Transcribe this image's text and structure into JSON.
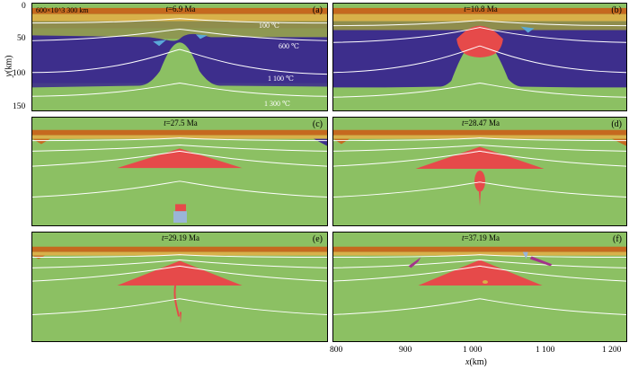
{
  "figure": {
    "scale_text": "600×10^3 300 km",
    "y_axis": {
      "label_var": "y",
      "label_unit": "(km)",
      "ticks": [
        "0",
        "50",
        "100",
        "150"
      ]
    },
    "x_axis": {
      "label_var": "x",
      "label_unit": "(km)",
      "ticks": [
        "800",
        "900",
        "1 000",
        "1 100",
        "1 200"
      ]
    },
    "isotherms": [
      "100 ℃",
      "600 ℃",
      "1 100 ℃",
      "1 300 ℃"
    ],
    "panels": [
      {
        "id": "a",
        "label": "(a)",
        "time_var": "t",
        "time_val": "=6.9 Ma"
      },
      {
        "id": "b",
        "label": "(b)",
        "time_var": "t",
        "time_val": "=10.8 Ma"
      },
      {
        "id": "c",
        "label": "(c)",
        "time_var": "t",
        "time_val": "=27.5 Ma"
      },
      {
        "id": "d",
        "label": "(d)",
        "time_var": "t",
        "time_val": "=28.47 Ma"
      },
      {
        "id": "e",
        "label": "(e)",
        "time_var": "t",
        "time_val": "=29.19 Ma"
      },
      {
        "id": "f",
        "label": "(f)",
        "time_var": "t",
        "time_val": "=37.19 Ma"
      }
    ],
    "colors": {
      "mantle": "#8cc063",
      "lithosphere": "#3d2e8c",
      "melt": "#e64a4a",
      "crust_upper": "#c5691f",
      "crust_mid": "#d8b14a",
      "crust_lower": "#8f8d4d",
      "isotherm": "#ffffff",
      "blob_blue": "#9ab5d8"
    }
  }
}
